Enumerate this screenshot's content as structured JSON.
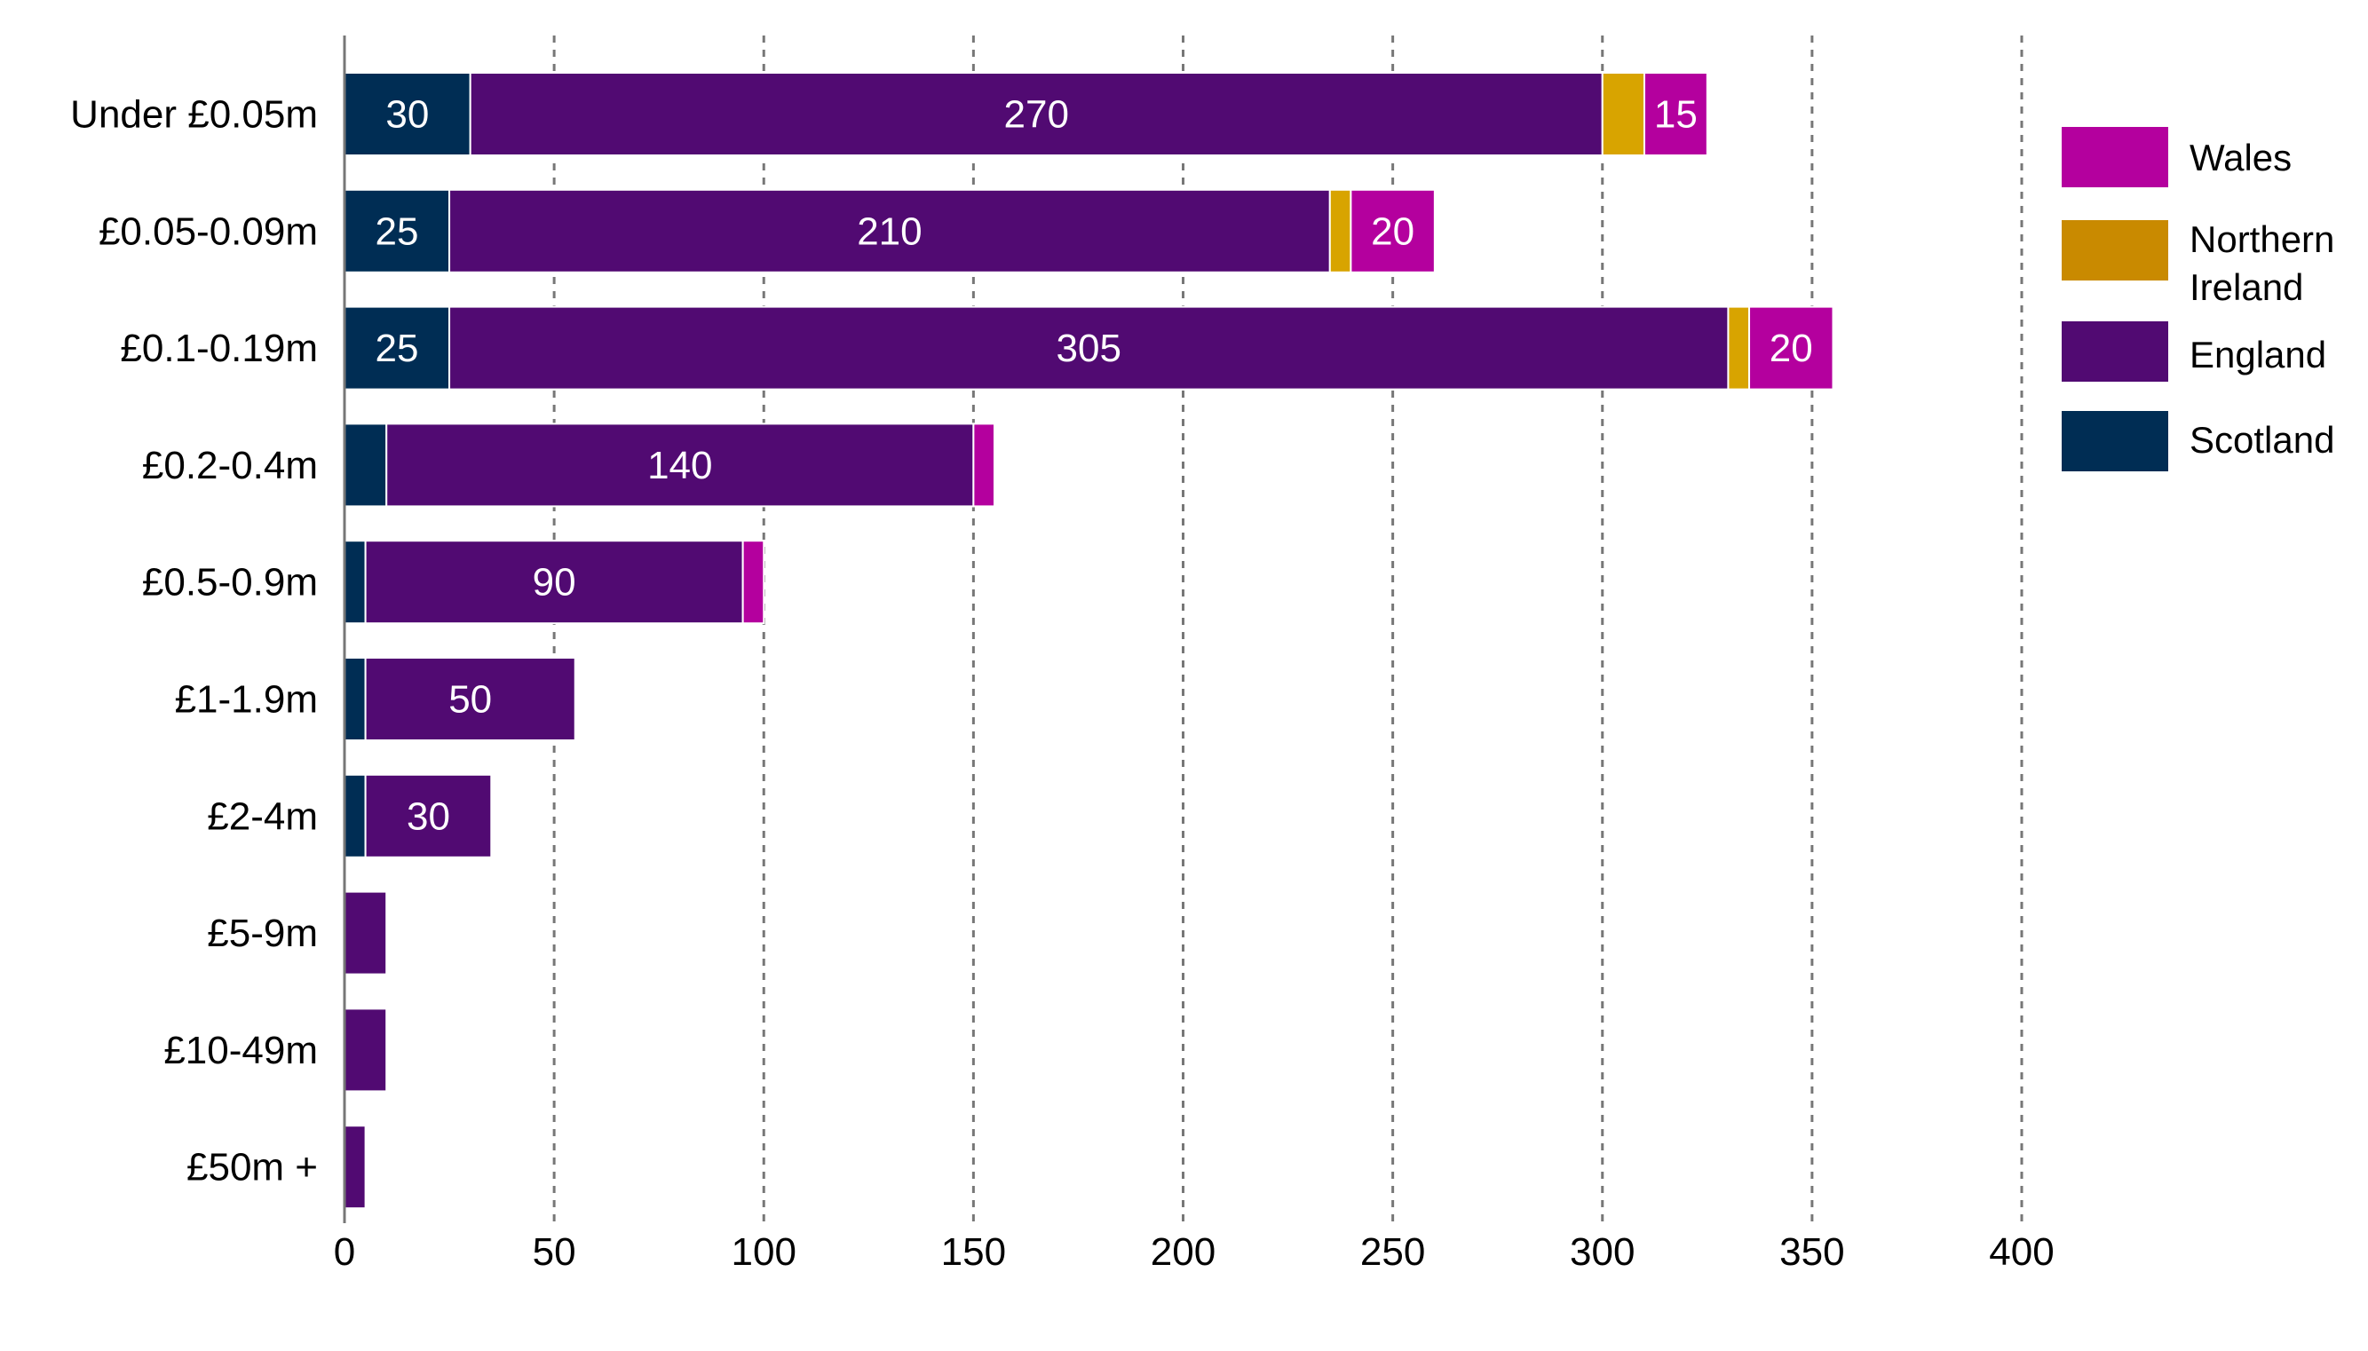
{
  "chart_data": {
    "type": "bar",
    "orientation": "horizontal",
    "stacked": true,
    "categories": [
      "Under £0.05m",
      "£0.05-0.09m",
      "£0.1-0.19m",
      "£0.2-0.4m",
      "£0.5-0.9m",
      "£1-1.9m",
      "£2-4m",
      "£5-9m",
      "£10-49m",
      "£50m +"
    ],
    "series": [
      {
        "name": "Scotland",
        "color": "#002d54",
        "values": [
          30,
          25,
          25,
          10,
          5,
          5,
          5,
          0,
          0,
          0
        ]
      },
      {
        "name": "England",
        "color": "#510a72",
        "values": [
          270,
          210,
          305,
          140,
          90,
          50,
          30,
          10,
          10,
          5
        ]
      },
      {
        "name": "Northern Ireland",
        "color": "#d8a400",
        "values": [
          10,
          5,
          5,
          0,
          0,
          0,
          0,
          0,
          0,
          0
        ]
      },
      {
        "name": "Wales",
        "color": "#b4009e",
        "values": [
          15,
          20,
          20,
          5,
          5,
          0,
          0,
          0,
          0,
          0
        ]
      }
    ],
    "data_labels": [
      {
        "category": 0,
        "series": 0,
        "text": "30"
      },
      {
        "category": 0,
        "series": 1,
        "text": "270"
      },
      {
        "category": 0,
        "series": 3,
        "text": "15"
      },
      {
        "category": 1,
        "series": 0,
        "text": "25"
      },
      {
        "category": 1,
        "series": 1,
        "text": "210"
      },
      {
        "category": 1,
        "series": 3,
        "text": "20"
      },
      {
        "category": 2,
        "series": 0,
        "text": "25"
      },
      {
        "category": 2,
        "series": 1,
        "text": "305"
      },
      {
        "category": 2,
        "series": 3,
        "text": "20"
      },
      {
        "category": 3,
        "series": 1,
        "text": "140"
      },
      {
        "category": 4,
        "series": 1,
        "text": "90"
      },
      {
        "category": 5,
        "series": 1,
        "text": "50"
      },
      {
        "category": 6,
        "series": 1,
        "text": "30"
      }
    ],
    "xlim": [
      0,
      400
    ],
    "x_ticks": [
      0,
      50,
      100,
      150,
      200,
      250,
      300,
      350,
      400
    ],
    "x_tick_labels": [
      "0",
      "50",
      "100",
      "150",
      "200",
      "250",
      "300",
      "350",
      "400"
    ],
    "grid": true,
    "grid_style": "dashed vertical",
    "legend": {
      "placement": "right",
      "entries": [
        {
          "label_lines": [
            "Wales"
          ],
          "color": "#b4009e"
        },
        {
          "label_lines": [
            "Northern",
            "Ireland"
          ],
          "color": "#c98a00"
        },
        {
          "label_lines": [
            "England"
          ],
          "color": "#510a72"
        },
        {
          "label_lines": [
            "Scotland"
          ],
          "color": "#002d54"
        }
      ]
    },
    "title": "",
    "xlabel": "",
    "ylabel": ""
  }
}
